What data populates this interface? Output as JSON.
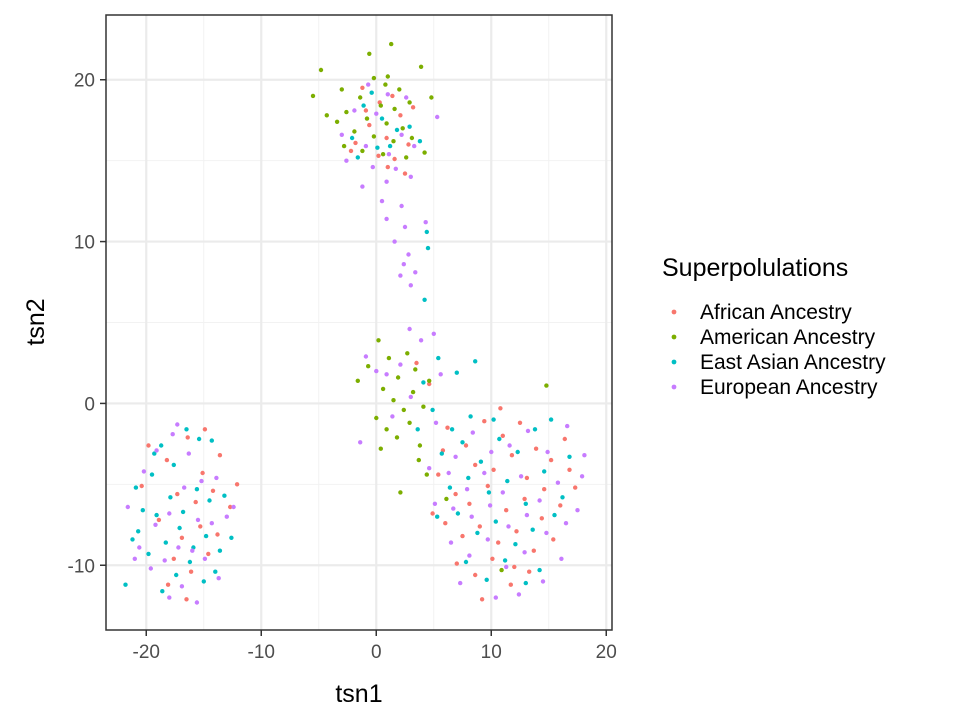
{
  "chart_data": {
    "type": "scatter",
    "xlabel": "tsn1",
    "ylabel": "tsn2",
    "xlim": [
      -23.5,
      20.5
    ],
    "ylim": [
      -14,
      24
    ],
    "x_ticks": [
      -20,
      -10,
      0,
      10,
      20
    ],
    "y_ticks": [
      -10,
      0,
      10,
      20
    ],
    "x_tick_labels": [
      "-20",
      "-10",
      "0",
      "10",
      "20"
    ],
    "y_tick_labels": [
      "-10",
      "0",
      "10",
      "20"
    ],
    "grid": true,
    "legend": {
      "title": "Superpolulations",
      "position": "right"
    },
    "series": [
      {
        "name": "African Ancestry",
        "color": "#F8766D",
        "points": [
          [
            -1.2,
            19.5
          ],
          [
            0.3,
            18.6
          ],
          [
            1.4,
            19.0
          ],
          [
            -0.6,
            17.2
          ],
          [
            0.9,
            16.4
          ],
          [
            2.1,
            17.8
          ],
          [
            -1.8,
            16.1
          ],
          [
            0.2,
            15.3
          ],
          [
            1.6,
            15.1
          ],
          [
            2.8,
            16.0
          ],
          [
            -0.9,
            18.1
          ],
          [
            3.2,
            18.3
          ],
          [
            1.0,
            14.6
          ],
          [
            -2.2,
            15.6
          ],
          [
            2.5,
            14.2
          ],
          [
            3.5,
            2.5
          ],
          [
            4.6,
            1.2
          ],
          [
            6.2,
            -1.5
          ],
          [
            7.8,
            -2.6
          ],
          [
            9.4,
            -1.1
          ],
          [
            11.0,
            -2.0
          ],
          [
            12.5,
            -1.2
          ],
          [
            13.9,
            -2.8
          ],
          [
            15.2,
            -3.5
          ],
          [
            16.4,
            -2.2
          ],
          [
            8.6,
            -3.8
          ],
          [
            10.2,
            -4.1
          ],
          [
            11.8,
            -3.2
          ],
          [
            13.1,
            -4.6
          ],
          [
            14.6,
            -5.3
          ],
          [
            5.4,
            -4.4
          ],
          [
            6.9,
            -5.6
          ],
          [
            8.1,
            -6.2
          ],
          [
            9.7,
            -5.1
          ],
          [
            11.3,
            -6.6
          ],
          [
            12.9,
            -5.9
          ],
          [
            14.4,
            -7.1
          ],
          [
            16.0,
            -6.3
          ],
          [
            17.3,
            -5.2
          ],
          [
            6.0,
            -7.4
          ],
          [
            7.5,
            -8.2
          ],
          [
            9.0,
            -7.6
          ],
          [
            10.6,
            -8.6
          ],
          [
            12.2,
            -7.9
          ],
          [
            13.7,
            -9.1
          ],
          [
            15.4,
            -8.4
          ],
          [
            7.0,
            -9.9
          ],
          [
            8.6,
            -10.6
          ],
          [
            10.1,
            -9.6
          ],
          [
            11.7,
            -11.2
          ],
          [
            13.3,
            -10.4
          ],
          [
            9.2,
            -12.1
          ],
          [
            4.9,
            -6.8
          ],
          [
            5.8,
            -2.9
          ],
          [
            10.8,
            -0.3
          ],
          [
            12.0,
            -10.1
          ],
          [
            16.8,
            -4.1
          ],
          [
            -19.8,
            -2.6
          ],
          [
            -18.2,
            -3.5
          ],
          [
            -16.4,
            -2.1
          ],
          [
            -15.1,
            -4.3
          ],
          [
            -13.6,
            -3.2
          ],
          [
            -17.3,
            -5.6
          ],
          [
            -15.7,
            -6.1
          ],
          [
            -14.2,
            -5.4
          ],
          [
            -12.7,
            -6.4
          ],
          [
            -18.9,
            -7.2
          ],
          [
            -16.9,
            -8.3
          ],
          [
            -15.3,
            -7.6
          ],
          [
            -13.8,
            -8.1
          ],
          [
            -17.6,
            -9.6
          ],
          [
            -16.1,
            -10.4
          ],
          [
            -14.6,
            -9.3
          ],
          [
            -18.1,
            -11.2
          ],
          [
            -16.5,
            -12.1
          ],
          [
            -20.4,
            -5.1
          ],
          [
            -14.9,
            -1.6
          ],
          [
            -12.1,
            -5.0
          ]
        ]
      },
      {
        "name": "American Ancestry",
        "color": "#7CAE00",
        "points": [
          [
            -4.8,
            20.6
          ],
          [
            -5.5,
            19.0
          ],
          [
            -0.6,
            21.6
          ],
          [
            1.3,
            22.2
          ],
          [
            3.9,
            20.8
          ],
          [
            -0.2,
            20.1
          ],
          [
            0.8,
            19.7
          ],
          [
            2.0,
            19.4
          ],
          [
            -1.4,
            18.9
          ],
          [
            0.4,
            18.4
          ],
          [
            1.6,
            18.2
          ],
          [
            2.9,
            18.6
          ],
          [
            -2.6,
            18.0
          ],
          [
            -0.8,
            17.6
          ],
          [
            0.9,
            17.3
          ],
          [
            2.3,
            17.0
          ],
          [
            -3.4,
            17.4
          ],
          [
            -1.9,
            16.8
          ],
          [
            -0.2,
            16.5
          ],
          [
            1.5,
            16.2
          ],
          [
            3.1,
            16.4
          ],
          [
            -2.8,
            15.9
          ],
          [
            -1.2,
            15.6
          ],
          [
            0.6,
            15.4
          ],
          [
            2.6,
            15.2
          ],
          [
            4.2,
            15.5
          ],
          [
            -4.3,
            17.8
          ],
          [
            4.8,
            18.9
          ],
          [
            -3.0,
            19.4
          ],
          [
            1.0,
            20.2
          ],
          [
            -1.6,
            1.4
          ],
          [
            -0.7,
            2.3
          ],
          [
            0.2,
            3.9
          ],
          [
            1.1,
            2.8
          ],
          [
            1.9,
            1.6
          ],
          [
            2.7,
            3.1
          ],
          [
            3.4,
            2.1
          ],
          [
            0.6,
            0.9
          ],
          [
            1.5,
            0.2
          ],
          [
            2.4,
            -0.4
          ],
          [
            3.2,
            0.7
          ],
          [
            4.1,
            -0.2
          ],
          [
            0.0,
            -0.9
          ],
          [
            0.9,
            -1.6
          ],
          [
            1.8,
            -2.1
          ],
          [
            2.9,
            -1.2
          ],
          [
            3.8,
            -2.6
          ],
          [
            0.4,
            -2.8
          ],
          [
            4.6,
            1.4
          ],
          [
            3.7,
            -3.5
          ],
          [
            2.1,
            -5.5
          ],
          [
            4.4,
            -4.4
          ],
          [
            6.1,
            -5.9
          ],
          [
            14.8,
            1.1
          ],
          [
            10.9,
            -10.3
          ]
        ]
      },
      {
        "name": "East Asian Ancestry",
        "color": "#00BFC4",
        "points": [
          [
            -1.1,
            18.4
          ],
          [
            0.5,
            17.6
          ],
          [
            1.8,
            16.9
          ],
          [
            -2.1,
            16.4
          ],
          [
            0.1,
            15.8
          ],
          [
            2.9,
            17.1
          ],
          [
            -0.4,
            19.2
          ],
          [
            1.2,
            15.9
          ],
          [
            3.8,
            16.2
          ],
          [
            -1.6,
            15.2
          ],
          [
            4.4,
            10.6
          ],
          [
            4.5,
            9.6
          ],
          [
            4.2,
            6.4
          ],
          [
            5.4,
            2.8
          ],
          [
            7.0,
            1.9
          ],
          [
            8.6,
            2.6
          ],
          [
            4.9,
            -0.4
          ],
          [
            6.6,
            -1.6
          ],
          [
            8.2,
            -0.8
          ],
          [
            3.6,
            -1.6
          ],
          [
            5.7,
            -3.1
          ],
          [
            7.5,
            -2.4
          ],
          [
            9.1,
            -3.6
          ],
          [
            10.7,
            -2.2
          ],
          [
            12.3,
            -3.0
          ],
          [
            13.8,
            -1.6
          ],
          [
            15.2,
            -1.0
          ],
          [
            6.4,
            -5.2
          ],
          [
            8.0,
            -4.6
          ],
          [
            9.8,
            -5.5
          ],
          [
            11.4,
            -4.8
          ],
          [
            13.0,
            -6.2
          ],
          [
            14.6,
            -4.2
          ],
          [
            16.2,
            -5.8
          ],
          [
            5.3,
            -7.0
          ],
          [
            7.1,
            -6.8
          ],
          [
            8.8,
            -8.0
          ],
          [
            10.4,
            -7.3
          ],
          [
            12.1,
            -8.7
          ],
          [
            13.6,
            -7.8
          ],
          [
            15.5,
            -6.9
          ],
          [
            7.8,
            -9.8
          ],
          [
            9.6,
            -10.9
          ],
          [
            11.2,
            -9.7
          ],
          [
            13.0,
            -11.1
          ],
          [
            14.2,
            -10.3
          ],
          [
            10.2,
            -1.0
          ],
          [
            4.1,
            1.3
          ],
          [
            16.8,
            -3.3
          ],
          [
            -21.8,
            -11.2
          ],
          [
            -21.2,
            -8.4
          ],
          [
            -20.3,
            -6.6
          ],
          [
            -19.5,
            -4.4
          ],
          [
            -18.7,
            -2.6
          ],
          [
            -17.6,
            -3.8
          ],
          [
            -16.5,
            -1.6
          ],
          [
            -15.4,
            -2.2
          ],
          [
            -14.3,
            -2.3
          ],
          [
            -20.7,
            -7.9
          ],
          [
            -19.1,
            -6.9
          ],
          [
            -17.9,
            -5.8
          ],
          [
            -16.8,
            -6.7
          ],
          [
            -15.6,
            -5.3
          ],
          [
            -14.5,
            -6.0
          ],
          [
            -13.2,
            -5.7
          ],
          [
            -19.8,
            -9.3
          ],
          [
            -18.3,
            -8.6
          ],
          [
            -17.1,
            -7.7
          ],
          [
            -15.9,
            -8.9
          ],
          [
            -14.8,
            -8.2
          ],
          [
            -13.6,
            -9.1
          ],
          [
            -18.6,
            -11.6
          ],
          [
            -17.4,
            -10.6
          ],
          [
            -16.2,
            -9.8
          ],
          [
            -15.0,
            -11.0
          ],
          [
            -14.0,
            -10.4
          ],
          [
            -19.3,
            -3.1
          ],
          [
            -12.6,
            -8.3
          ],
          [
            -20.9,
            -5.2
          ]
        ]
      },
      {
        "name": "European Ancestry",
        "color": "#C77CFF",
        "points": [
          [
            -0.7,
            19.7
          ],
          [
            1.0,
            19.1
          ],
          [
            2.6,
            18.9
          ],
          [
            -1.9,
            18.1
          ],
          [
            0.0,
            17.9
          ],
          [
            2.2,
            16.6
          ],
          [
            -3.0,
            16.6
          ],
          [
            -0.9,
            15.9
          ],
          [
            1.1,
            15.4
          ],
          [
            3.3,
            15.9
          ],
          [
            -2.6,
            15.0
          ],
          [
            -0.3,
            14.6
          ],
          [
            1.7,
            14.5
          ],
          [
            5.3,
            17.7
          ],
          [
            3.0,
            14.0
          ],
          [
            -1.2,
            13.4
          ],
          [
            0.9,
            13.7
          ],
          [
            0.5,
            12.5
          ],
          [
            0.9,
            11.4
          ],
          [
            2.2,
            12.2
          ],
          [
            2.5,
            10.9
          ],
          [
            1.6,
            10.0
          ],
          [
            2.8,
            9.2
          ],
          [
            3.4,
            8.1
          ],
          [
            2.4,
            8.6
          ],
          [
            3.0,
            7.3
          ],
          [
            4.3,
            11.2
          ],
          [
            2.1,
            7.9
          ],
          [
            2.9,
            4.6
          ],
          [
            3.9,
            3.9
          ],
          [
            5.0,
            4.3
          ],
          [
            -0.9,
            2.9
          ],
          [
            0.0,
            2.0
          ],
          [
            2.1,
            2.4
          ],
          [
            0.9,
            1.8
          ],
          [
            3.0,
            0.4
          ],
          [
            5.6,
            1.8
          ],
          [
            1.4,
            -0.8
          ],
          [
            5.2,
            -1.2
          ],
          [
            6.9,
            -3.3
          ],
          [
            8.4,
            -1.8
          ],
          [
            10.0,
            -3.0
          ],
          [
            11.6,
            -2.6
          ],
          [
            13.2,
            -1.7
          ],
          [
            14.9,
            -3.0
          ],
          [
            16.6,
            -1.4
          ],
          [
            18.1,
            -3.2
          ],
          [
            6.3,
            -4.3
          ],
          [
            7.9,
            -5.3
          ],
          [
            9.4,
            -4.3
          ],
          [
            11.0,
            -5.5
          ],
          [
            12.6,
            -4.5
          ],
          [
            14.2,
            -6.0
          ],
          [
            15.8,
            -4.9
          ],
          [
            17.5,
            -6.6
          ],
          [
            5.1,
            -6.2
          ],
          [
            6.7,
            -6.5
          ],
          [
            8.3,
            -7.0
          ],
          [
            9.9,
            -6.3
          ],
          [
            11.5,
            -7.6
          ],
          [
            13.1,
            -6.9
          ],
          [
            14.8,
            -8.0
          ],
          [
            16.5,
            -7.4
          ],
          [
            6.5,
            -8.6
          ],
          [
            8.1,
            -9.4
          ],
          [
            9.7,
            -8.4
          ],
          [
            11.3,
            -10.1
          ],
          [
            12.9,
            -9.2
          ],
          [
            14.5,
            -11.0
          ],
          [
            16.1,
            -9.6
          ],
          [
            10.4,
            -12.0
          ],
          [
            7.3,
            -11.1
          ],
          [
            12.4,
            -11.8
          ],
          [
            4.6,
            -4.0
          ],
          [
            17.9,
            -4.5
          ],
          [
            -1.4,
            -2.4
          ],
          [
            -21.6,
            -6.4
          ],
          [
            -20.2,
            -4.2
          ],
          [
            -19.1,
            -2.9
          ],
          [
            -17.7,
            -1.9
          ],
          [
            -16.3,
            -3.1
          ],
          [
            -15.2,
            -4.8
          ],
          [
            -13.9,
            -4.6
          ],
          [
            -20.6,
            -8.9
          ],
          [
            -19.2,
            -7.5
          ],
          [
            -18.0,
            -6.8
          ],
          [
            -16.7,
            -5.2
          ],
          [
            -15.5,
            -7.2
          ],
          [
            -14.3,
            -7.4
          ],
          [
            -13.0,
            -7.0
          ],
          [
            -19.6,
            -10.2
          ],
          [
            -18.4,
            -9.7
          ],
          [
            -17.2,
            -8.9
          ],
          [
            -16.0,
            -9.1
          ],
          [
            -14.9,
            -9.6
          ],
          [
            -13.7,
            -10.8
          ],
          [
            -18.0,
            -12.0
          ],
          [
            -16.9,
            -11.3
          ],
          [
            -15.6,
            -12.3
          ],
          [
            -12.4,
            -6.4
          ],
          [
            -21.0,
            -9.6
          ],
          [
            -17.3,
            -1.3
          ]
        ]
      }
    ]
  }
}
